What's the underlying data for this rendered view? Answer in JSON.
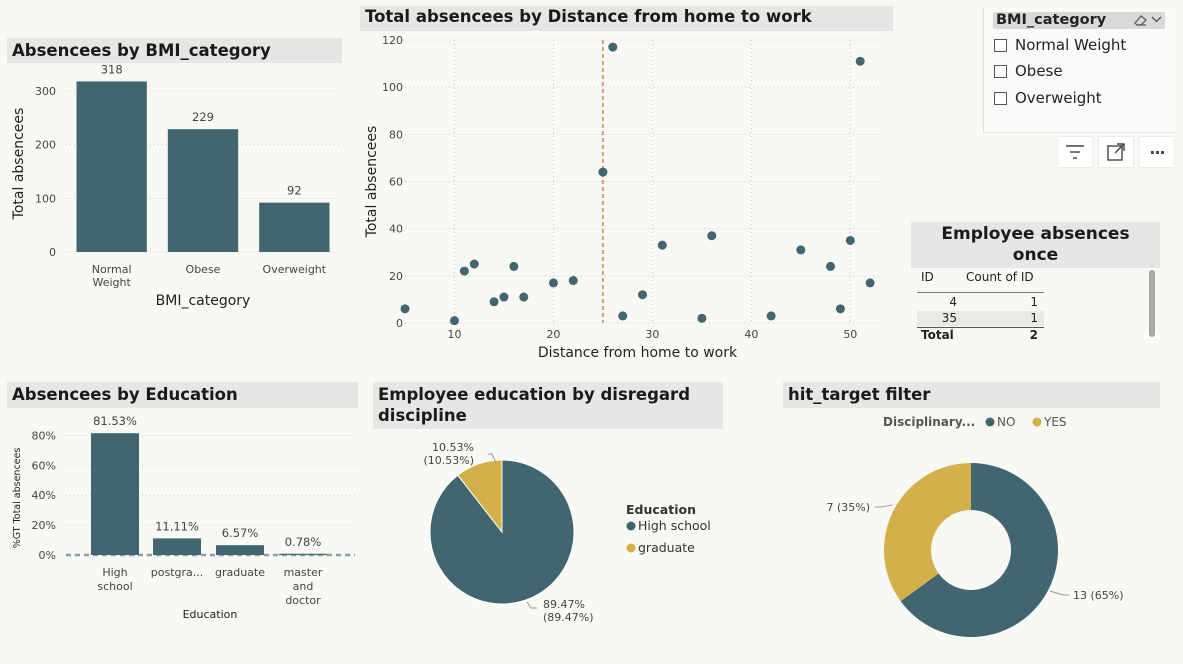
{
  "bmi_bar": {
    "title": "Absencees by BMI_category",
    "chart_data": {
      "type": "bar",
      "categories": [
        "Normal Weight",
        "Obese",
        "Overweight"
      ],
      "category_lines": [
        [
          "Normal",
          "Weight"
        ],
        [
          "Obese"
        ],
        [
          "Overweight"
        ]
      ],
      "values": [
        318,
        229,
        92
      ],
      "value_labels": [
        "318",
        "229",
        "92"
      ],
      "xlabel": "BMI_category",
      "ylabel": "Total absencees",
      "yticks": [
        0,
        100,
        200,
        300
      ],
      "ylim": [
        0,
        330
      ],
      "grid": true,
      "color": "#41666f"
    }
  },
  "scatter": {
    "title": "Total absencees by Distance from home to work",
    "chart_data": {
      "type": "scatter",
      "xlabel": "Distance from home to work",
      "ylabel": "Total absencees",
      "xlim": [
        5,
        53
      ],
      "ylim": [
        0,
        120
      ],
      "xticks": [
        10,
        20,
        30,
        40,
        50
      ],
      "yticks": [
        0,
        20,
        40,
        60,
        80,
        100,
        120
      ],
      "reference_line_x": 25,
      "points": [
        {
          "x": 5,
          "y": 6
        },
        {
          "x": 10,
          "y": 1
        },
        {
          "x": 11,
          "y": 22
        },
        {
          "x": 12,
          "y": 25
        },
        {
          "x": 14,
          "y": 9
        },
        {
          "x": 15,
          "y": 11
        },
        {
          "x": 16,
          "y": 24
        },
        {
          "x": 17,
          "y": 11
        },
        {
          "x": 20,
          "y": 17
        },
        {
          "x": 22,
          "y": 18
        },
        {
          "x": 25,
          "y": 64
        },
        {
          "x": 26,
          "y": 117
        },
        {
          "x": 27,
          "y": 3
        },
        {
          "x": 29,
          "y": 12
        },
        {
          "x": 31,
          "y": 33
        },
        {
          "x": 35,
          "y": 2
        },
        {
          "x": 36,
          "y": 37
        },
        {
          "x": 42,
          "y": 3
        },
        {
          "x": 45,
          "y": 31
        },
        {
          "x": 48,
          "y": 24
        },
        {
          "x": 49,
          "y": 6
        },
        {
          "x": 50,
          "y": 35
        },
        {
          "x": 51,
          "y": 111
        },
        {
          "x": 52,
          "y": 17
        }
      ],
      "grid": true,
      "color": "#41666f",
      "reference_color": "#e09a7a"
    }
  },
  "slicer": {
    "title": "BMI_category",
    "items": [
      "Normal Weight",
      "Obese",
      "Overweight"
    ]
  },
  "visual_header": {
    "icons": [
      "filter-icon",
      "focus-mode-icon",
      "more-options-icon"
    ],
    "more_label": "···"
  },
  "once_table": {
    "title_line1": "Employee absences",
    "title_line2": "once",
    "headers": [
      "ID",
      "Count of ID"
    ],
    "rows": [
      {
        "id": "4",
        "count": "1"
      },
      {
        "id": "35",
        "count": "1"
      }
    ],
    "total_label": "Total",
    "total_value": "2"
  },
  "edu_bar": {
    "title": "Absencees by Education",
    "chart_data": {
      "type": "bar",
      "categories": [
        "High school",
        "postgra...",
        "graduate",
        "master and doctor"
      ],
      "category_lines": [
        [
          "High",
          "school"
        ],
        [
          "postgra..."
        ],
        [
          "graduate"
        ],
        [
          "master",
          "and",
          "doctor"
        ]
      ],
      "values": [
        81.53,
        11.11,
        6.57,
        0.78
      ],
      "value_labels": [
        "81.53%",
        "11.11%",
        "6.57%",
        "0.78%"
      ],
      "xlabel": "Education",
      "ylabel": "%GT Total absencees",
      "ytick_labels": [
        "0%",
        "20%",
        "40%",
        "60%",
        "80%"
      ],
      "yticks": [
        0,
        20,
        40,
        60,
        80
      ],
      "ylim": [
        0,
        85
      ],
      "grid": true,
      "color": "#41666f"
    }
  },
  "edu_pie": {
    "title_line1": "Employee education by disregard",
    "title_line2": "discipline",
    "chart_data": {
      "type": "pie",
      "legend_title": "Education",
      "slices": [
        {
          "name": "High school",
          "value": 89.47,
          "color": "#41666f",
          "label1": "89.47%",
          "label2": "(89.47%)"
        },
        {
          "name": "graduate",
          "value": 10.53,
          "color": "#d4b04a",
          "label1": "10.53%",
          "label2": "(10.53%)"
        }
      ],
      "legend_position": "right"
    }
  },
  "donut": {
    "title": "hit_target filter",
    "chart_data": {
      "type": "pie",
      "legend_title": "Disciplinary...",
      "legend_position": "top",
      "slices": [
        {
          "name": "NO",
          "value": 13,
          "color": "#41666f",
          "label": "13 (65%)"
        },
        {
          "name": "YES",
          "value": 7,
          "color": "#d4b04a",
          "label": "7 (35%)"
        }
      ]
    }
  }
}
